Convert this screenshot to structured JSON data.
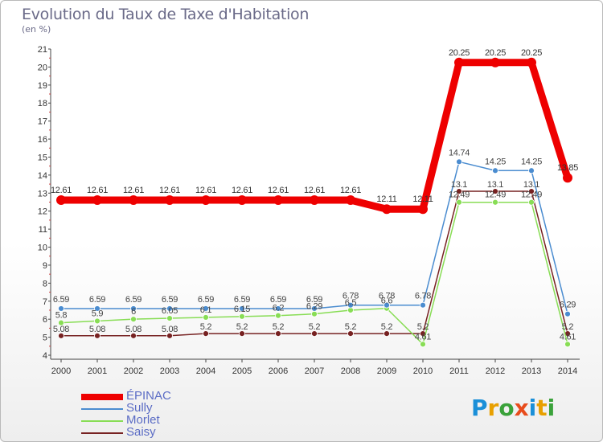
{
  "title": "Evolution du Taux de Taxe d'Habitation",
  "unit": "(en %)",
  "logo": [
    "P",
    "r",
    "o",
    "x",
    "i",
    "t",
    "i"
  ],
  "logo_colors": [
    "#1a8fd8",
    "#e8a000",
    "#3aa23a",
    "#e84c1c",
    "#1a8fd8",
    "#e8a000",
    "#3aa23a"
  ],
  "chart_data": {
    "type": "line",
    "x": [
      "2000",
      "2001",
      "2002",
      "2003",
      "2004",
      "2005",
      "2006",
      "2007",
      "2008",
      "2009",
      "2010",
      "2011",
      "2012",
      "2013",
      "2014"
    ],
    "ylim": [
      4,
      21
    ],
    "yticks": [
      "4",
      "5",
      "6",
      "7",
      "8",
      "9",
      "10",
      "11",
      "12",
      "13",
      "14",
      "15",
      "16",
      "17",
      "18",
      "19",
      "20",
      "21"
    ],
    "grid": false,
    "legend_position": "bottom-left",
    "series": [
      {
        "name": "ÉPINAC",
        "color": "#ee0000",
        "values": [
          12.61,
          12.61,
          12.61,
          12.61,
          12.61,
          12.61,
          12.61,
          12.61,
          12.61,
          12.11,
          12.11,
          20.25,
          20.25,
          20.25,
          13.85
        ],
        "labels": [
          "12.61",
          "12.61",
          "12.61",
          "12.61",
          "12.61",
          "12.61",
          "12.61",
          "12.61",
          "12.61",
          "12.11",
          "12.11",
          "20.25",
          "20.25",
          "20.25",
          "13.85"
        ]
      },
      {
        "name": "Sully",
        "color": "#4a8cd0",
        "values": [
          6.59,
          6.59,
          6.59,
          6.59,
          6.59,
          6.59,
          6.59,
          6.59,
          6.78,
          6.78,
          6.78,
          14.74,
          14.25,
          14.25,
          6.29
        ],
        "labels": [
          "6.59",
          "6.59",
          "6.59",
          "6.59",
          "6.59",
          "6.59",
          "6.59",
          "6.59",
          "6.78",
          "6.78",
          "6.78",
          "14.74",
          "14.25",
          "14.25",
          "6.29"
        ]
      },
      {
        "name": "Morlet",
        "color": "#88dd55",
        "values": [
          5.8,
          5.9,
          6.0,
          6.05,
          6.1,
          6.15,
          6.2,
          6.29,
          6.5,
          6.6,
          4.61,
          12.49,
          12.49,
          12.49,
          4.61
        ],
        "labels": [
          "5.8",
          "5.9",
          "6",
          "6.05",
          "6.1",
          "6.15",
          "6.2",
          "6.29",
          "6.5",
          "6.6",
          "4.61",
          "12.49",
          "12.49",
          "12.49",
          "4.61"
        ]
      },
      {
        "name": "Saisy",
        "color": "#772222",
        "values": [
          5.08,
          5.08,
          5.08,
          5.08,
          5.2,
          5.2,
          5.2,
          5.2,
          5.2,
          5.2,
          5.2,
          13.1,
          13.1,
          13.1,
          5.2
        ],
        "labels": [
          "5.08",
          "5.08",
          "5.08",
          "5.08",
          "5.2",
          "5.2",
          "5.2",
          "5.2",
          "5.2",
          "5.2",
          "5.2",
          "13.1",
          "13.1",
          "13.1",
          "5.2"
        ]
      }
    ]
  }
}
